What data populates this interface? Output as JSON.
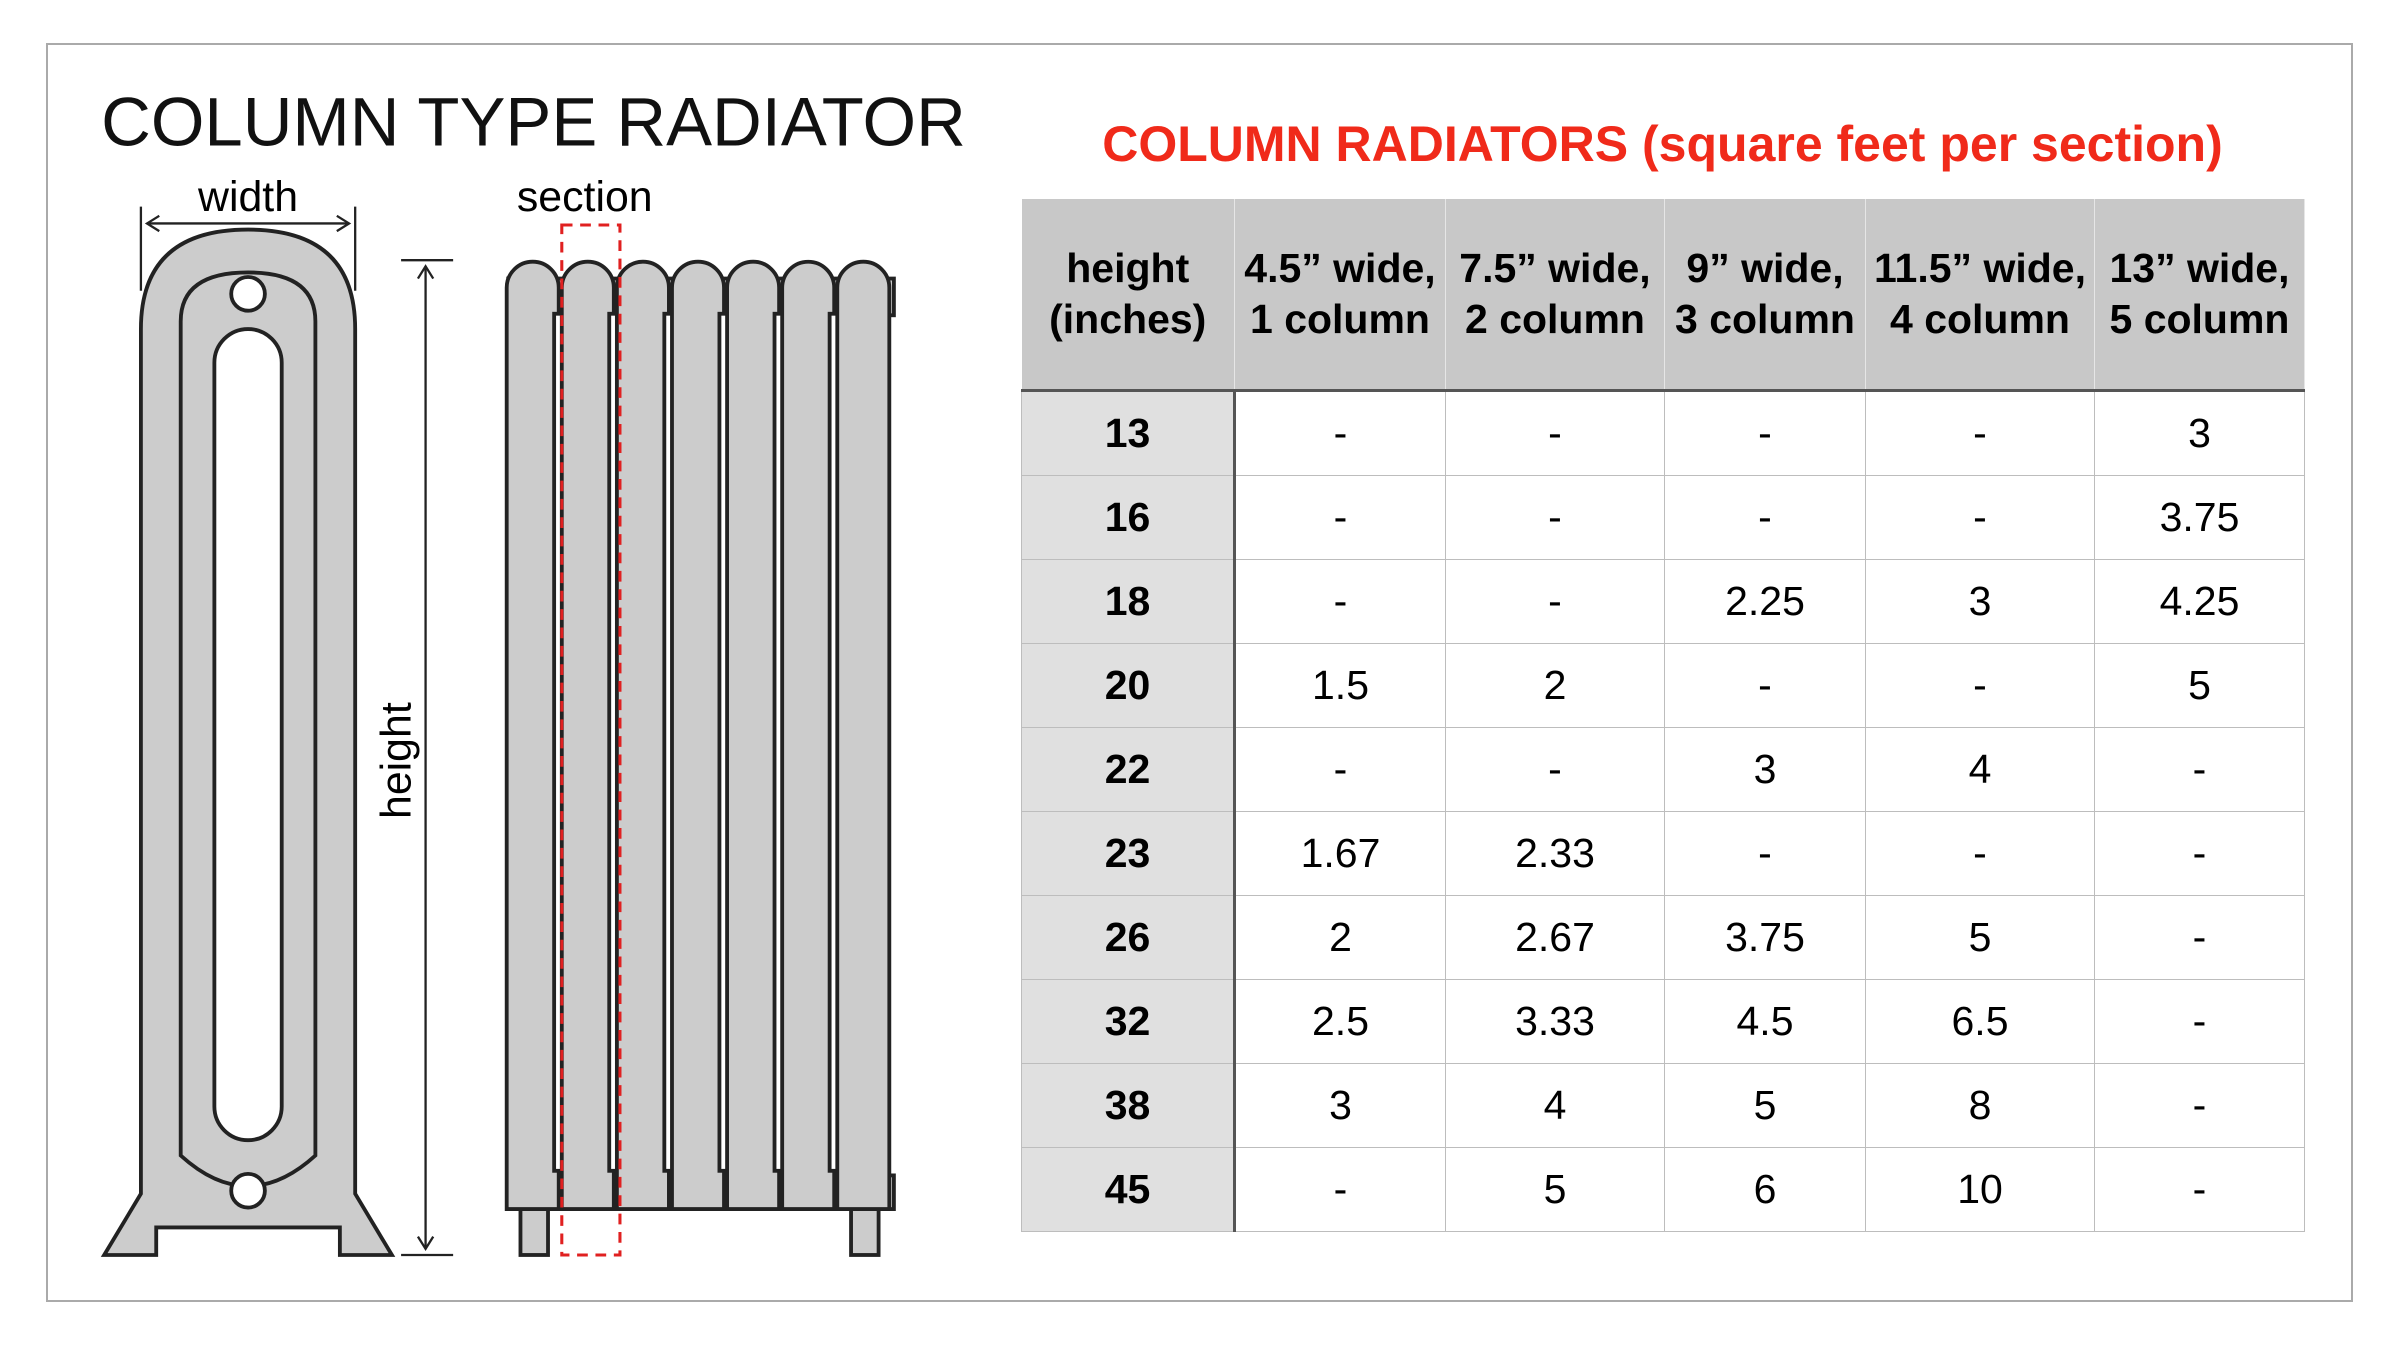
{
  "diagram": {
    "title": "COLUMN TYPE RADIATOR",
    "width_label": "width",
    "height_label": "height",
    "section_label": "section"
  },
  "table": {
    "title": "COLUMN RADIATORS (square feet per section)",
    "headers": [
      "height (inches)",
      "4.5” wide, 1 column",
      "7.5” wide, 2 column",
      "9” wide, 3 column",
      "11.5” wide, 4 column",
      "13” wide, 5 column"
    ],
    "rows": [
      [
        "13",
        "-",
        "-",
        "-",
        "-",
        "3"
      ],
      [
        "16",
        "-",
        "-",
        "-",
        "-",
        "3.75"
      ],
      [
        "18",
        "-",
        "-",
        "2.25",
        "3",
        "4.25"
      ],
      [
        "20",
        "1.5",
        "2",
        "-",
        "-",
        "5"
      ],
      [
        "22",
        "-",
        "-",
        "3",
        "4",
        "-"
      ],
      [
        "23",
        "1.67",
        "2.33",
        "-",
        "-",
        "-"
      ],
      [
        "26",
        "2",
        "2.67",
        "3.75",
        "5",
        "-"
      ],
      [
        "32",
        "2.5",
        "3.33",
        "4.5",
        "6.5",
        "-"
      ],
      [
        "38",
        "3",
        "4",
        "5",
        "8",
        "-"
      ],
      [
        "45",
        "-",
        "5",
        "6",
        "10",
        "-"
      ]
    ]
  }
}
